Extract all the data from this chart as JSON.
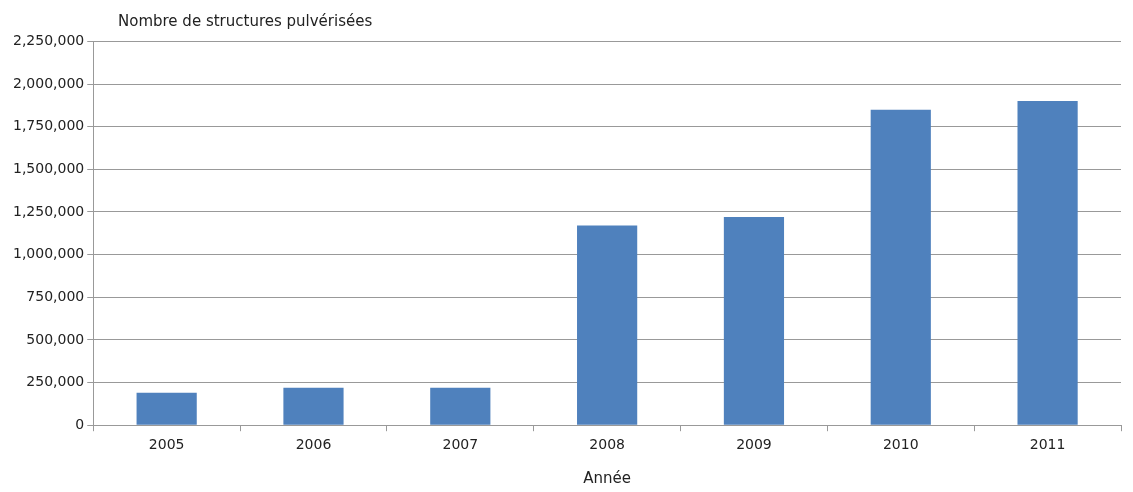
{
  "chart_data": {
    "type": "bar",
    "ylabel": "Nombre de structures pulvérisées",
    "xlabel": "Année",
    "categories": [
      "2005",
      "2006",
      "2007",
      "2008",
      "2009",
      "2010",
      "2011"
    ],
    "values": [
      190000,
      220000,
      220000,
      1170000,
      1220000,
      1850000,
      1900000
    ],
    "color": "#4f81bd",
    "ylim": [
      0,
      2250000
    ],
    "yticks": [
      {
        "value": 0,
        "label": "0"
      },
      {
        "value": 250000,
        "label": "250,000"
      },
      {
        "value": 500000,
        "label": "500,000"
      },
      {
        "value": 750000,
        "label": "750,000"
      },
      {
        "value": 1000000,
        "label": "1,000,000"
      },
      {
        "value": 1250000,
        "label": "1,250,000"
      },
      {
        "value": 1500000,
        "label": "1,500,000"
      },
      {
        "value": 1750000,
        "label": "1,750,000"
      },
      {
        "value": 2000000,
        "label": "2,000,000"
      },
      {
        "value": 2250000,
        "label": "2,250,000"
      }
    ],
    "grid": "y",
    "legend": false
  }
}
